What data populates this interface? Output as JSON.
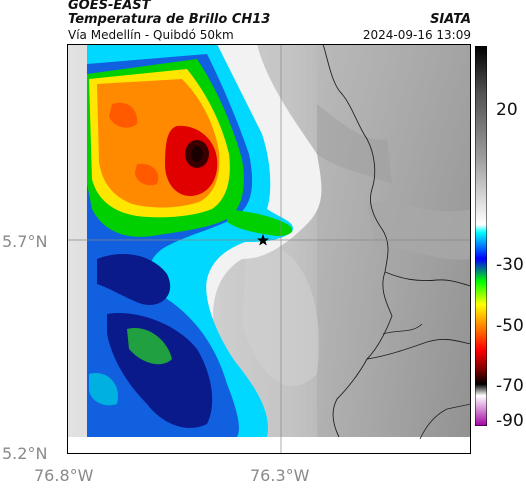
{
  "header": {
    "main": "GOES-EAST",
    "title": "Temperatura de Brillo CH13",
    "subtitle": "Vía Medellín - Quibdó 50km",
    "organization": "SIATA",
    "datetime": "2024-09-16 13:09"
  },
  "axes": {
    "lat_ticks": [
      "5.7°N",
      "5.2°N"
    ],
    "lon_ticks": [
      "76.8°W",
      "76.3°W"
    ]
  },
  "colorbar": {
    "ticks": [
      "20",
      "-30",
      "-50",
      "-70",
      "-90"
    ],
    "stops": [
      "#000000",
      "#808080",
      "#ffffff",
      "#00ffff",
      "#0000ff",
      "#00ff00",
      "#ffff00",
      "#ff7f00",
      "#ff0000",
      "#800000",
      "#000000",
      "#ffffff",
      "#800080"
    ]
  },
  "map": {
    "marker": "star-icon",
    "palette": {
      "cold_dark": "#3a0000",
      "red": "#d40000",
      "orange": "#ff8c00",
      "yellow": "#ffe600",
      "green": "#00d000",
      "cyan": "#00d0ff",
      "blue": "#0050d0",
      "navy": "#0a1a80",
      "white": "#f4f4f4",
      "gray_light": "#cfcfcf",
      "gray_mid": "#a8a8a8",
      "gray_dark": "#8c8c8c"
    }
  }
}
